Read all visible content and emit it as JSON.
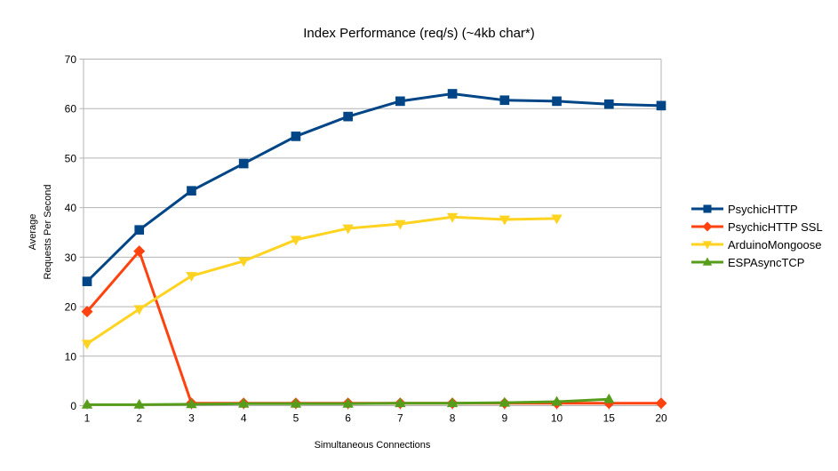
{
  "chart_data": {
    "type": "line",
    "title": "Index Performance (req/s) (~4kb char*)",
    "xlabel": "Simultaneous Connections",
    "ylabel_lines": {
      "line1": "Average",
      "line2": "Requests Per Second"
    },
    "categories": [
      "1",
      "2",
      "3",
      "4",
      "5",
      "6",
      "7",
      "8",
      "9",
      "10",
      "15",
      "20"
    ],
    "y_ticks": [
      0,
      10,
      20,
      30,
      40,
      50,
      60,
      70
    ],
    "ylim": [
      0,
      70
    ],
    "grid": "horizontal",
    "legend_position": "right",
    "colors": {
      "axis": "#b3b3b3",
      "gridline": "#b3b3b3",
      "text": "#000000",
      "background": "#ffffff"
    },
    "series": [
      {
        "name": "PsychicHTTP",
        "color": "#004586",
        "marker": "square",
        "values": [
          25.1,
          35.5,
          43.4,
          48.9,
          54.4,
          58.4,
          61.5,
          63.0,
          61.7,
          61.5,
          60.9,
          60.6
        ]
      },
      {
        "name": "PsychicHTTP SSL",
        "color": "#ff420e",
        "marker": "diamond",
        "values": [
          19.0,
          31.2,
          0.5,
          0.5,
          0.5,
          0.5,
          0.5,
          0.5,
          0.5,
          0.5,
          0.5,
          0.5
        ]
      },
      {
        "name": "ArduinoMongoose",
        "color": "#ffd320",
        "marker": "triangle-down",
        "values": [
          12.5,
          19.5,
          26.2,
          29.2,
          33.5,
          35.8,
          36.7,
          38.1,
          37.6,
          37.8
        ]
      },
      {
        "name": "ESPAsyncTCP",
        "color": "#579d1c",
        "marker": "triangle-up",
        "values": [
          0.2,
          0.2,
          0.3,
          0.4,
          0.4,
          0.4,
          0.5,
          0.5,
          0.6,
          0.8,
          1.3
        ]
      }
    ]
  }
}
